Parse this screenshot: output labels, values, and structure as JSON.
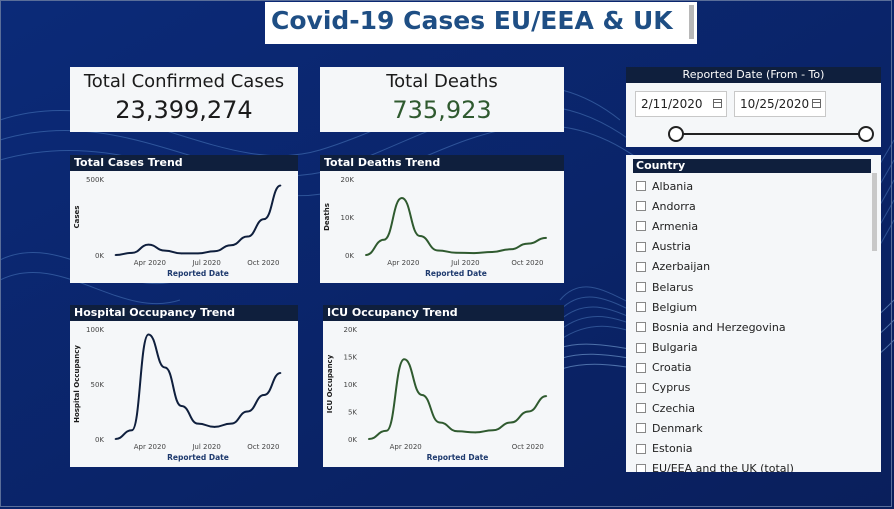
{
  "title": "Covid-19 Cases EU/EEA & UK",
  "kpis": {
    "confirmed_label": "Total Confirmed Cases",
    "confirmed_value": "23,399,274",
    "deaths_label": "Total Deaths",
    "deaths_value": "735,923"
  },
  "date_filter": {
    "label": "Reported Date (From - To)",
    "from": "2/11/2020",
    "to": "10/25/2020",
    "range_fraction": [
      0.0,
      1.0
    ]
  },
  "country_filter": {
    "header": "Country",
    "items": [
      "Albania",
      "Andorra",
      "Armenia",
      "Austria",
      "Azerbaijan",
      "Belarus",
      "Belgium",
      "Bosnia and Herzegovina",
      "Bulgaria",
      "Croatia",
      "Cyprus",
      "Czechia",
      "Denmark",
      "Estonia",
      "EU/EEA and the UK (total)"
    ]
  },
  "colors": {
    "navy": "#0f1f3d",
    "green": "#2f5a2f",
    "background": "#0d2466",
    "title": "#1e4e84"
  },
  "chart_data": [
    {
      "type": "line",
      "title": "Total Cases Trend",
      "xlabel": "Reported Date",
      "ylabel": "Cases",
      "x_ticks": [
        "Apr 2020",
        "Jul 2020",
        "Oct 2020"
      ],
      "y_ticks": [
        "0K",
        "500K"
      ],
      "ylim": [
        0,
        700000
      ],
      "x": [
        "Feb",
        "Mar",
        "Apr",
        "May",
        "Jun",
        "Jul",
        "Aug",
        "Sep",
        "Oct (early)",
        "Oct (mid)",
        "Oct (late)"
      ],
      "series": [
        {
          "values": [
            0,
            20000,
            95000,
            40000,
            15000,
            15000,
            35000,
            90000,
            170000,
            330000,
            640000
          ]
        }
      ]
    },
    {
      "type": "line",
      "title": "Total Deaths Trend",
      "xlabel": "Reported Date",
      "ylabel": "Deaths",
      "x_ticks": [
        "Apr 2020",
        "Jul 2020",
        "Oct 2020"
      ],
      "y_ticks": [
        "0K",
        "10K",
        "20K"
      ],
      "ylim": [
        0,
        20000
      ],
      "x": [
        "Feb",
        "Mar",
        "Apr",
        "May",
        "Jun",
        "Jul",
        "Aug",
        "Sep",
        "Oct (early)",
        "Oct (mid)",
        "Oct (late)"
      ],
      "series": [
        {
          "values": [
            0,
            4000,
            15000,
            5000,
            1200,
            600,
            500,
            800,
            1500,
            3000,
            4500
          ]
        }
      ]
    },
    {
      "type": "line",
      "title": "Hospital Occupancy Trend",
      "xlabel": "Reported Date",
      "ylabel": "Hospital Occupancy",
      "x_ticks": [
        "Apr 2020",
        "Jul 2020",
        "Oct 2020"
      ],
      "y_ticks": [
        "0K",
        "50K",
        "100K"
      ],
      "ylim": [
        0,
        100000
      ],
      "x": [
        "Feb",
        "Mar",
        "Apr",
        "May",
        "Jun",
        "Jul",
        "Aug",
        "Sep",
        "Oct (early)",
        "Oct (mid)",
        "Oct (late)"
      ],
      "series": [
        {
          "values": [
            0,
            8000,
            95000,
            65000,
            30000,
            14000,
            11000,
            14000,
            25000,
            40000,
            60000
          ]
        }
      ]
    },
    {
      "type": "line",
      "title": "ICU Occupancy Trend",
      "xlabel": "Reported Date",
      "ylabel": "ICU Occupancy",
      "x_ticks": [
        "Apr 2020",
        "Oct 2020"
      ],
      "y_ticks": [
        "0K",
        "5K",
        "10K",
        "15K",
        "20K"
      ],
      "ylim": [
        0,
        20000
      ],
      "x": [
        "Feb",
        "Mar",
        "Apr",
        "May",
        "Jun",
        "Jul",
        "Aug",
        "Sep",
        "Oct (early)",
        "Oct (mid)",
        "Oct (late)"
      ],
      "series": [
        {
          "values": [
            0,
            1500,
            14500,
            8000,
            3000,
            1400,
            1200,
            1600,
            3000,
            5000,
            7800
          ]
        }
      ]
    }
  ]
}
